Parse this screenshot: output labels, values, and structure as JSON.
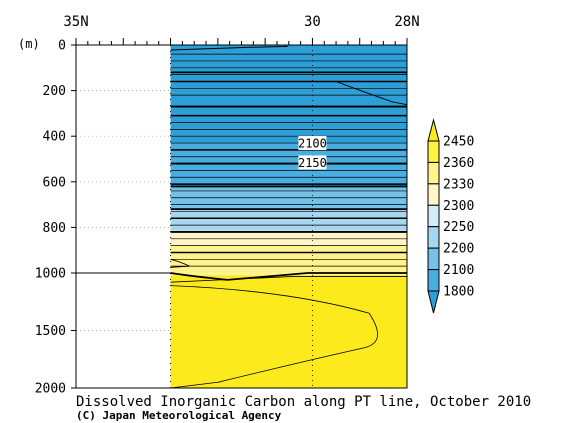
{
  "chart_data": {
    "type": "heatmap",
    "title": "Dissolved Inorganic Carbon along PT line, October 2010",
    "credit": "(C) Japan Meteorological Agency",
    "x_axis": {
      "ticks": [
        {
          "lat": 35,
          "label": "35N"
        },
        {
          "lat": 30,
          "label": "30"
        },
        {
          "lat": 28,
          "label": "28N"
        }
      ],
      "range": [
        35,
        28
      ]
    },
    "y_axis": {
      "unit_label": "(m)",
      "ticks": [
        0,
        200,
        400,
        600,
        800,
        1000,
        1500,
        2000
      ],
      "range": [
        0,
        2000
      ],
      "note": "piecewise depth scale: 0–1000 m and 1000–2000 m compressed"
    },
    "data_extent_lat": [
      33.0,
      28.0
    ],
    "colorbar": {
      "levels": [
        1800,
        2100,
        2200,
        2250,
        2300,
        2330,
        2360,
        2450
      ],
      "colors": [
        "#2e9fd6",
        "#4aaddf",
        "#74c2e8",
        "#a6d7f1",
        "#d4ebf8",
        "#fff6c8",
        "#fff38e",
        "#fff23f",
        "#fdea1c"
      ]
    },
    "contour_labels": [
      {
        "value": "2100",
        "lat": 30.0,
        "depth": 430
      },
      {
        "value": "2150",
        "lat": 30.0,
        "depth": 515
      }
    ],
    "regions": [
      {
        "range": "<2100",
        "depth_top": 0,
        "depth_bottom": 430,
        "color": "#2e9fd6"
      },
      {
        "range": "2100-2200",
        "depth_top": 430,
        "depth_bottom": 630,
        "color": "#4aaddf"
      },
      {
        "range": "2200-2250",
        "depth_top": 630,
        "depth_bottom": 720,
        "color": "#74c2e8"
      },
      {
        "range": "2250-2300",
        "depth_top": 720,
        "depth_bottom": 815,
        "color": "#a6d7f1"
      },
      {
        "range": "2300-2330",
        "depth_top": 815,
        "depth_bottom": 880,
        "color": "#fff6c8"
      },
      {
        "range": "2330-2360",
        "depth_top": 880,
        "depth_bottom": 1020,
        "color": "#fff38e"
      },
      {
        "range": ">2360",
        "depth_top": 1020,
        "depth_bottom": 2000,
        "color": "#fdea1c"
      }
    ]
  }
}
